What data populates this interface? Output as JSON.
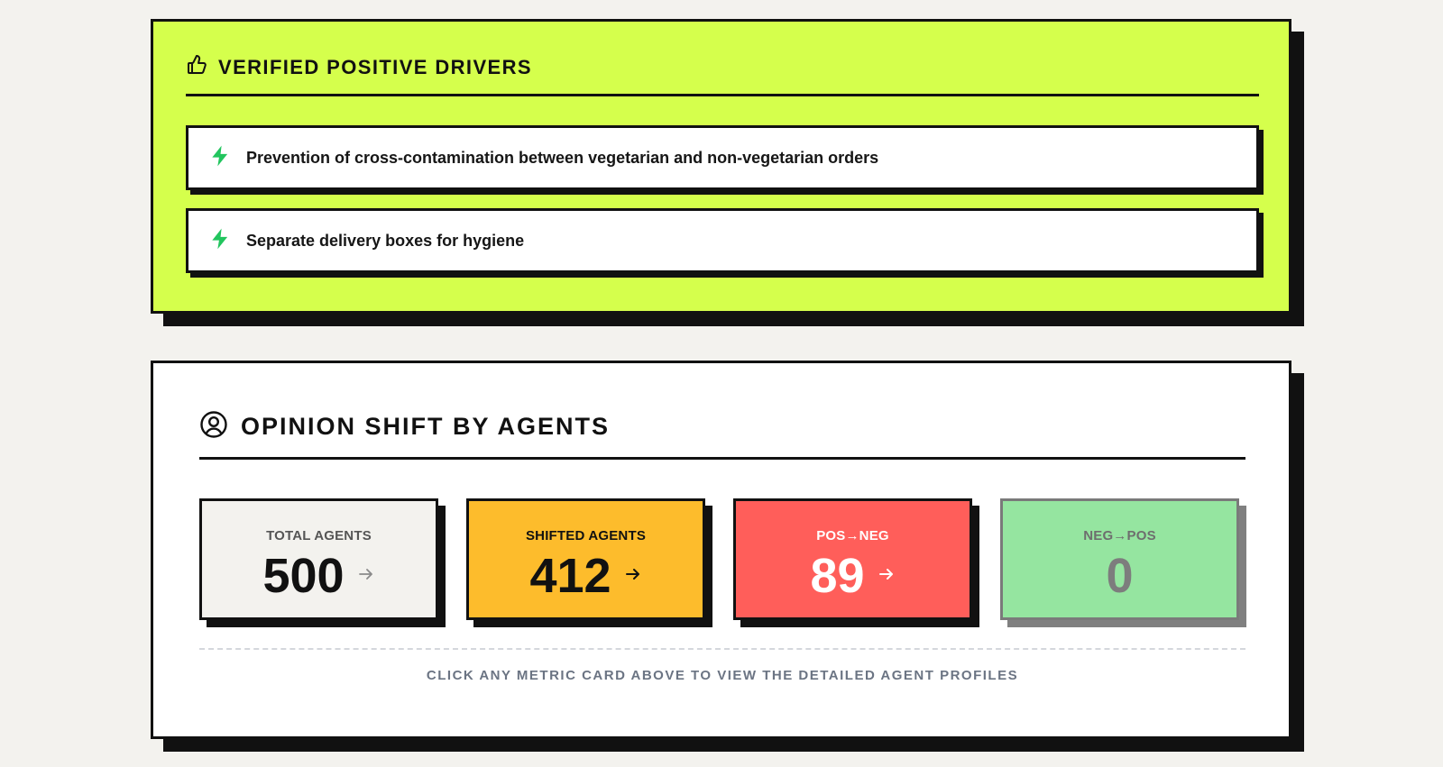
{
  "drivers": {
    "title": "VERIFIED POSITIVE DRIVERS",
    "icon": "thumbs-up-icon",
    "items_icon": "lightning-bolt-icon",
    "items": [
      {
        "text": "Prevention of cross-contamination between vegetarian and non-vegetarian orders"
      },
      {
        "text": "Separate delivery boxes for hygiene"
      }
    ],
    "accent_color": "#d5ff4c",
    "bolt_color": "#22c55e"
  },
  "opinion_shift": {
    "title": "OPINION SHIFT BY AGENTS",
    "icon": "user-circle-icon",
    "metrics": [
      {
        "label": "TOTAL AGENTS",
        "value": "500",
        "color": "#f3f2ee"
      },
      {
        "label": "SHIFTED AGENTS",
        "value": "412",
        "color": "#fdbc2c"
      },
      {
        "label": "POS→NEG",
        "value": "89",
        "color": "#ff5e5a"
      },
      {
        "label": "NEG→POS",
        "value": "0",
        "color": "#95e5a0"
      }
    ],
    "hint": "CLICK ANY METRIC CARD ABOVE TO VIEW THE DETAILED AGENT PROFILES"
  }
}
